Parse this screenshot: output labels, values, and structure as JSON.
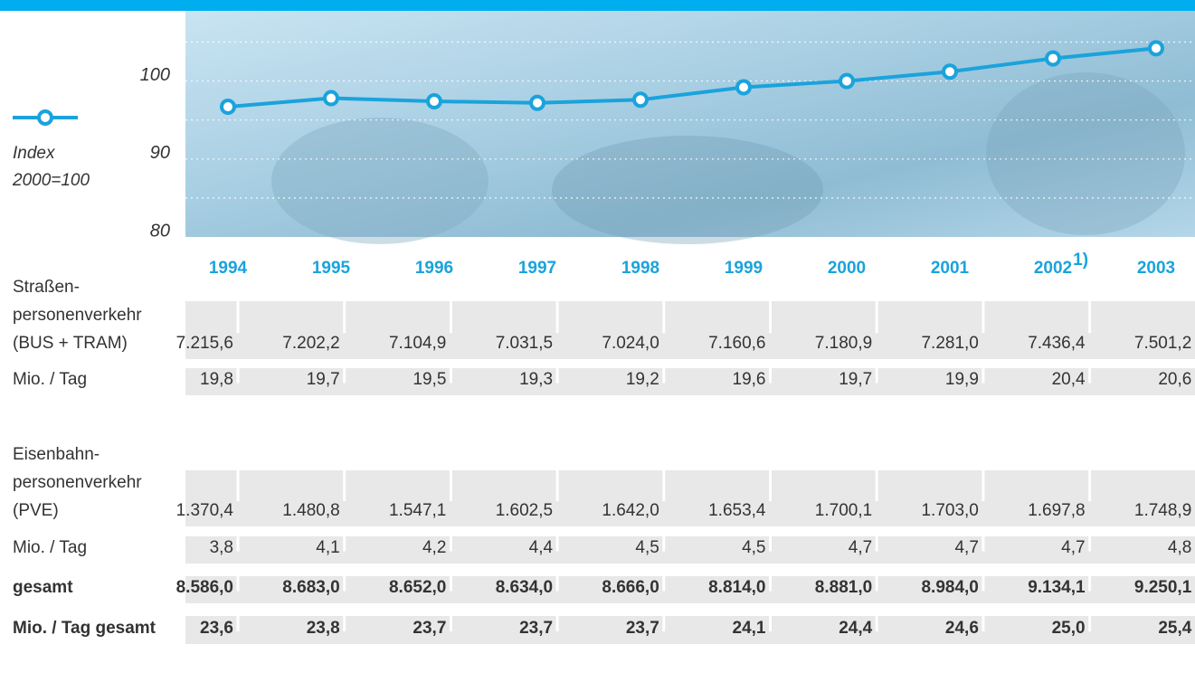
{
  "chart_data": {
    "type": "line",
    "categories": [
      "1994",
      "1995",
      "1996",
      "1997",
      "1998",
      "1999",
      "2000",
      "2001",
      "2002",
      "2003"
    ],
    "category_notes": [
      null,
      null,
      null,
      null,
      null,
      null,
      null,
      null,
      "1)",
      null
    ],
    "series": [
      {
        "name": "Index 2000=100",
        "color": "#1aa3dc",
        "values": [
          96.7,
          97.8,
          97.4,
          97.2,
          97.6,
          99.2,
          100,
          101.2,
          102.9,
          104.2
        ]
      }
    ],
    "ylim": [
      80,
      109
    ],
    "yticks": [
      80,
      90,
      100
    ],
    "grid_lines": [
      85,
      90,
      95,
      100,
      105
    ],
    "grid": true
  },
  "table": {
    "rows": [
      {
        "label": [
          "Straßen-",
          "personenverkehr",
          "(BUS + TRAM)"
        ],
        "bold": false,
        "values": [
          "7.215,6",
          "7.202,2",
          "7.104,9",
          "7.031,5",
          "7.024,0",
          "7.160,6",
          "7.180,9",
          "7.281,0",
          "7.436,4",
          "7.501,2"
        ]
      },
      {
        "label": [
          "Mio. / Tag"
        ],
        "bold": false,
        "values": [
          "19,8",
          "19,7",
          "19,5",
          "19,3",
          "19,2",
          "19,6",
          "19,7",
          "19,9",
          "20,4",
          "20,6"
        ]
      },
      {
        "label": [
          "Eisenbahn-",
          "personenverkehr",
          "(PVE)"
        ],
        "bold": false,
        "values": [
          "1.370,4",
          "1.480,8",
          "1.547,1",
          "1.602,5",
          "1.642,0",
          "1.653,4",
          "1.700,1",
          "1.703,0",
          "1.697,8",
          "1.748,9"
        ]
      },
      {
        "label": [
          "Mio. / Tag"
        ],
        "bold": false,
        "values": [
          "3,8",
          "4,1",
          "4,2",
          "4,4",
          "4,5",
          "4,5",
          "4,7",
          "4,7",
          "4,7",
          "4,8"
        ]
      },
      {
        "label": [
          "gesamt"
        ],
        "bold": true,
        "values": [
          "8.586,0",
          "8.683,0",
          "8.652,0",
          "8.634,0",
          "8.666,0",
          "8.814,0",
          "8.881,0",
          "8.984,0",
          "9.134,1",
          "9.250,1"
        ]
      },
      {
        "label": [
          "Mio. / Tag gesamt"
        ],
        "bold": true,
        "values": [
          "23,6",
          "23,8",
          "23,7",
          "23,7",
          "23,7",
          "24,1",
          "24,4",
          "24,6",
          "25,0",
          "25,4"
        ]
      }
    ]
  }
}
